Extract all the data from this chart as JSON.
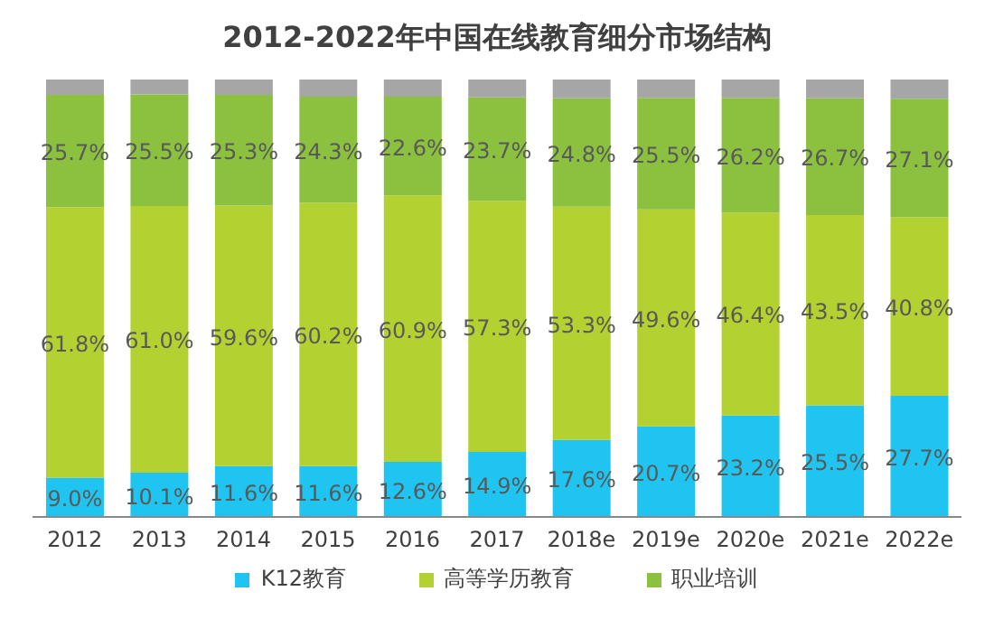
{
  "chart_data": {
    "type": "bar",
    "title": "2012-2022年中国在线教育细分市场结构",
    "stacked": true,
    "legend": "bottom",
    "categories": [
      "2012",
      "2013",
      "2014",
      "2015",
      "2016",
      "2017",
      "2018e",
      "2019e",
      "2020e",
      "2021e",
      "2022e"
    ],
    "series": [
      {
        "name": "K12教育",
        "color": "#20c4f0",
        "values": [
          9.0,
          10.1,
          11.6,
          11.6,
          12.6,
          14.9,
          17.6,
          20.7,
          23.2,
          25.5,
          27.7
        ],
        "value_labels": [
          "9.0%",
          "10.1%",
          "11.6%",
          "11.6%",
          "12.6%",
          "14.9%",
          "17.6%",
          "20.7%",
          "23.2%",
          "25.5%",
          "27.7%"
        ]
      },
      {
        "name": "高等学历教育",
        "color": "#b3d131",
        "values": [
          61.8,
          61.0,
          59.6,
          60.2,
          60.9,
          57.3,
          53.3,
          49.6,
          46.4,
          43.5,
          40.8
        ],
        "value_labels": [
          "61.8%",
          "61.0%",
          "59.6%",
          "60.2%",
          "60.9%",
          "57.3%",
          "53.3%",
          "49.6%",
          "46.4%",
          "43.5%",
          "40.8%"
        ]
      },
      {
        "name": "职业培训",
        "color": "#8bc13f",
        "values": [
          25.7,
          25.5,
          25.3,
          24.3,
          22.6,
          23.7,
          24.8,
          25.5,
          26.2,
          26.7,
          27.1
        ],
        "value_labels": [
          "25.7%",
          "25.5%",
          "25.3%",
          "24.3%",
          "22.6%",
          "23.7%",
          "24.8%",
          "25.5%",
          "26.2%",
          "26.7%",
          "27.1%"
        ]
      },
      {
        "color": "#a6a6a6",
        "values": [
          3.5,
          3.4,
          3.5,
          3.9,
          3.9,
          4.1,
          4.3,
          4.2,
          4.2,
          4.3,
          4.4
        ]
      }
    ]
  }
}
